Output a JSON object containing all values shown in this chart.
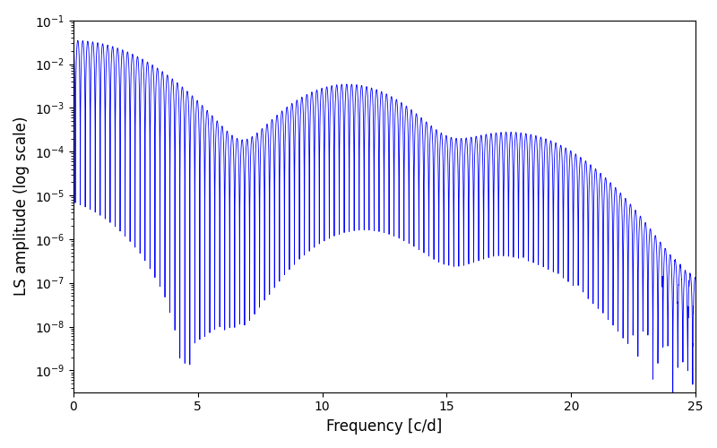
{
  "title": "",
  "xlabel": "Frequency [c/d]",
  "ylabel": "LS amplitude (log scale)",
  "xlim": [
    0,
    25
  ],
  "ylim_log": [
    -9.5,
    -1.0
  ],
  "line_color": "#0000ff",
  "line_width": 0.6,
  "figsize": [
    8.0,
    5.0
  ],
  "dpi": 100,
  "freq_max": 25.0,
  "n_points": 5000,
  "background": "#ffffff"
}
